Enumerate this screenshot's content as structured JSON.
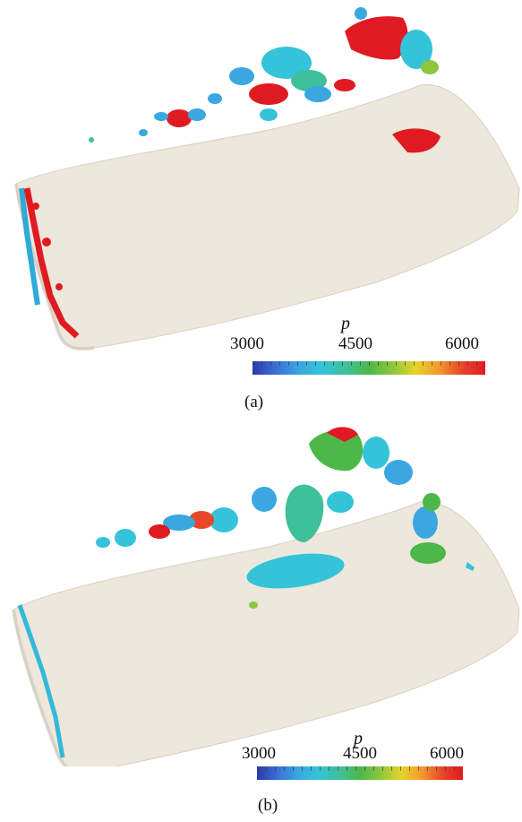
{
  "figure": {
    "panels": [
      {
        "caption": "(a)",
        "colorbar": {
          "variable": "p",
          "min_label": "3000",
          "mid_label": "4500",
          "max_label": "6000",
          "min": 3000,
          "max": 6000
        }
      },
      {
        "caption": "(b)",
        "colorbar": {
          "variable": "p",
          "min_label": "3000",
          "mid_label": "4500",
          "max_label": "6000",
          "min": 3000,
          "max": 6000
        }
      }
    ],
    "colormap": [
      "#2a3aa8",
      "#3b6fd6",
      "#3aa7e0",
      "#34c3d8",
      "#3fbf9a",
      "#4cb84a",
      "#8cc63f",
      "#e6d42a",
      "#f29a2e",
      "#e8452a",
      "#e01a22"
    ],
    "surface_color": "#ede7dc"
  }
}
